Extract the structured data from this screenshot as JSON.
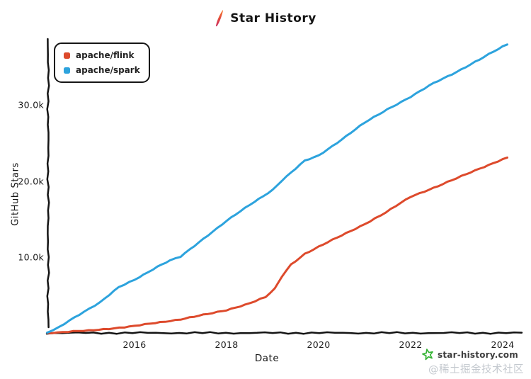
{
  "title": {
    "text": "Star History"
  },
  "legend": {
    "position": "top-left",
    "items": [
      {
        "label": "apache/flink",
        "color": "#dd4a2c"
      },
      {
        "label": "apache/spark",
        "color": "#2da3dd"
      }
    ]
  },
  "footer": {
    "brand": "star-history.com",
    "brand_star_color": "#35b335",
    "watermark": "@稀土掘金技术社区"
  },
  "chart_data": {
    "type": "line",
    "title": "Star History",
    "xlabel": "Date",
    "ylabel": "GitHub Stars",
    "x_unit": "year",
    "y_unit": "thousands of GitHub stars",
    "xlim": [
      2014.1,
      2024.4
    ],
    "ylim_thousands": [
      0,
      38.5
    ],
    "grid": false,
    "x_ticks": [
      "2016",
      "2018",
      "2020",
      "2022",
      "2024"
    ],
    "y_ticks": [
      "30.0k",
      "20.0k",
      "10.0k"
    ],
    "style": "hand-drawn (xkcd)",
    "axis_color": "#141414",
    "series": [
      {
        "name": "apache/flink",
        "color": "#dd4a2c",
        "points_year_vs_kstars": [
          [
            2014.1,
            0
          ],
          [
            2015,
            0.3
          ],
          [
            2016,
            0.9
          ],
          [
            2017,
            1.8
          ],
          [
            2017.7,
            2.6
          ],
          [
            2018,
            3.0
          ],
          [
            2018.5,
            3.9
          ],
          [
            2018.85,
            4.7
          ],
          [
            2019.05,
            5.8
          ],
          [
            2019.2,
            7.4
          ],
          [
            2019.4,
            9.0
          ],
          [
            2019.7,
            10.4
          ],
          [
            2020,
            11.3
          ],
          [
            2020.5,
            12.8
          ],
          [
            2021,
            14.3
          ],
          [
            2021.46,
            15.8
          ],
          [
            2022,
            17.9
          ],
          [
            2022.6,
            19.3
          ],
          [
            2023,
            20.3
          ],
          [
            2023.5,
            21.6
          ],
          [
            2024,
            22.8
          ],
          [
            2024.1,
            23.0
          ]
        ]
      },
      {
        "name": "apache/spark",
        "color": "#2da3dd",
        "points_year_vs_kstars": [
          [
            2014.1,
            0
          ],
          [
            2014.35,
            0.7
          ],
          [
            2014.6,
            1.7
          ],
          [
            2014.9,
            2.8
          ],
          [
            2015.25,
            4.0
          ],
          [
            2015.66,
            6.0
          ],
          [
            2016,
            7.0
          ],
          [
            2016.5,
            8.7
          ],
          [
            2016.77,
            9.5
          ],
          [
            2017,
            10.0
          ],
          [
            2017.5,
            12.4
          ],
          [
            2018,
            14.7
          ],
          [
            2018.5,
            16.8
          ],
          [
            2019,
            18.8
          ],
          [
            2019.2,
            20.0
          ],
          [
            2019.7,
            22.6
          ],
          [
            2020,
            23.3
          ],
          [
            2020.5,
            25.4
          ],
          [
            2021,
            27.6
          ],
          [
            2021.5,
            29.4
          ],
          [
            2022,
            31.0
          ],
          [
            2022.5,
            32.8
          ],
          [
            2023,
            34.3
          ],
          [
            2023.5,
            35.9
          ],
          [
            2024,
            37.6
          ],
          [
            2024.1,
            37.9
          ]
        ]
      }
    ]
  }
}
